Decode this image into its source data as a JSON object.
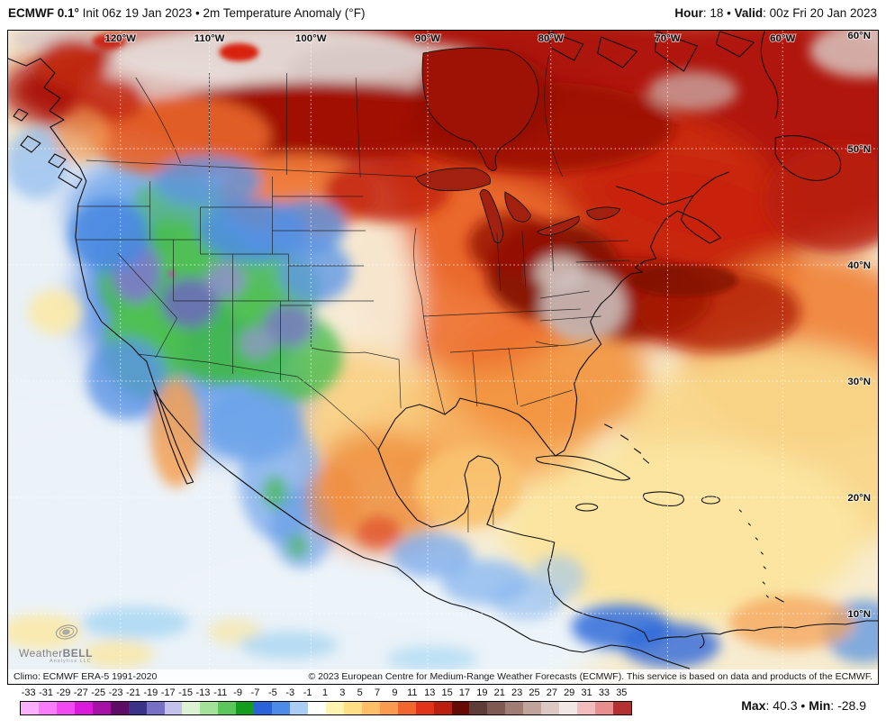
{
  "header": {
    "title_bold": "ECMWF 0.1°",
    "title_rest": " Init 06z 19 Jan 2023 • 2m Temperature Anomaly (°F)",
    "hour_bold": "Hour",
    "hour_rest": ": 18 • ",
    "valid_bold": "Valid",
    "valid_rest": ": 00z Fri 20 Jan 2023"
  },
  "map": {
    "lon_labels": [
      "120°W",
      "110°W",
      "100°W",
      "90°W",
      "80°W",
      "70°W",
      "60°W"
    ],
    "lat_labels": [
      "60°N",
      "50°N",
      "40°N",
      "30°N",
      "20°N",
      "10°N"
    ],
    "logo_name_small": "Weather",
    "logo_name_caps": "BELL",
    "logo_sub": "Analytics LLC"
  },
  "footer": {
    "climo": "Climo: ECMWF ERA-5 1991-2020",
    "copyright": "© 2023 European Centre for Medium-Range Weather Forecasts (ECMWF). This service is based on data and products of the ECMWF."
  },
  "stats": {
    "max_bold": "Max",
    "max_rest": ": 40.3 • ",
    "min_bold": "Min",
    "min_rest": ": -28.9"
  },
  "colorbar": {
    "ticks": [
      "-33",
      "-31",
      "-29",
      "-27",
      "-25",
      "-23",
      "-21",
      "-19",
      "-17",
      "-15",
      "-13",
      "-11",
      "-9",
      "-7",
      "-5",
      "-3",
      "-1",
      "1",
      "3",
      "5",
      "7",
      "9",
      "11",
      "13",
      "15",
      "17",
      "19",
      "21",
      "23",
      "25",
      "27",
      "29",
      "31",
      "33",
      "35"
    ],
    "colors": [
      "#FCAFFC",
      "#F97DF9",
      "#F249F2",
      "#DA1ADA",
      "#A510A5",
      "#5F0C66",
      "#3B3289",
      "#7770C5",
      "#C5C1ED",
      "#DCF2D3",
      "#A5E299",
      "#5BC75B",
      "#149C1D",
      "#2A63D8",
      "#4C8CE8",
      "#A9CDF5",
      "#FFFFFF",
      "#FFF5B1",
      "#FFDE84",
      "#FFBF67",
      "#FB9A51",
      "#F1662F",
      "#E0331A",
      "#BC1F10",
      "#660A04",
      "#5E3C37",
      "#7E5A52",
      "#9F7D74",
      "#C0A49C",
      "#DCC9C4",
      "#F1E8E6",
      "#F3BCBC",
      "#E98E8E",
      "#B53030"
    ],
    "accent_black": "#000000"
  }
}
